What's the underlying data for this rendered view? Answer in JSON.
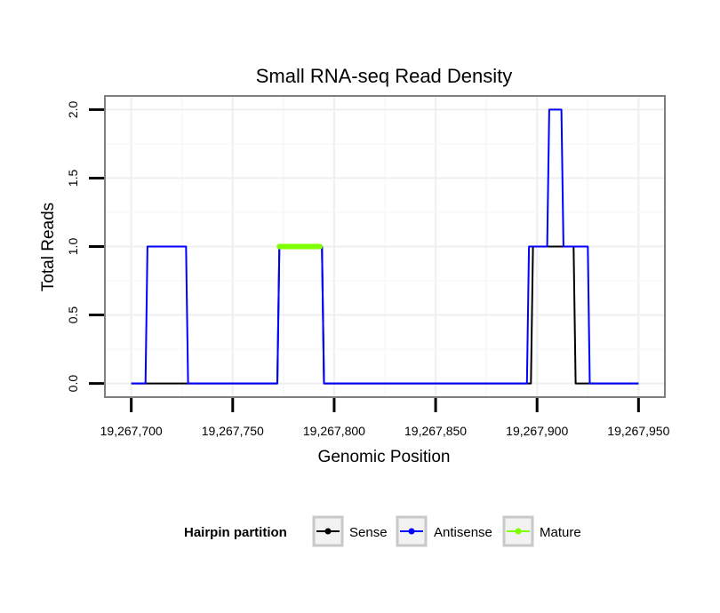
{
  "chart_data": {
    "type": "line",
    "title": "Small RNA-seq Read Density",
    "xlabel": "Genomic Position",
    "ylabel": "Total Reads",
    "xlim": [
      19267687,
      19267963
    ],
    "ylim": [
      -0.1,
      2.1
    ],
    "x_ticks": [
      19267700,
      19267750,
      19267800,
      19267850,
      19267900,
      19267950
    ],
    "x_tick_labels": [
      "19,267,700",
      "19,267,750",
      "19,267,800",
      "19,267,850",
      "19,267,900",
      "19,267,950"
    ],
    "y_ticks": [
      0,
      0.5,
      1,
      1.5,
      2
    ],
    "y_tick_labels": [
      "0.0",
      "0.5",
      "1.0",
      "1.5",
      "2.0"
    ],
    "grid": true,
    "legend": {
      "title": "Hairpin partition",
      "placement": "bottom",
      "entries": [
        "Sense",
        "Antisense",
        "Mature"
      ]
    },
    "series": [
      {
        "name": "Sense",
        "color": "#000000",
        "x": [
          19267700,
          19267772,
          19267773,
          19267794,
          19267795,
          19267897,
          19267898,
          19267918,
          19267919,
          19267950
        ],
        "y": [
          0,
          0,
          1,
          1,
          0,
          0,
          1,
          1,
          0,
          0
        ]
      },
      {
        "name": "Antisense",
        "color": "#0000ff",
        "x": [
          19267700,
          19267707,
          19267708,
          19267727,
          19267728,
          19267772,
          19267773,
          19267794,
          19267795,
          19267895,
          19267896,
          19267905,
          19267906,
          19267912,
          19267913,
          19267925,
          19267926,
          19267950
        ],
        "y": [
          0,
          0,
          1,
          1,
          0,
          0,
          1,
          1,
          0,
          0,
          1,
          1,
          2,
          2,
          1,
          1,
          0,
          0
        ]
      },
      {
        "name": "Mature",
        "color": "#7fff00",
        "x": [
          19267773,
          19267793
        ],
        "y": [
          1,
          1
        ]
      }
    ]
  }
}
